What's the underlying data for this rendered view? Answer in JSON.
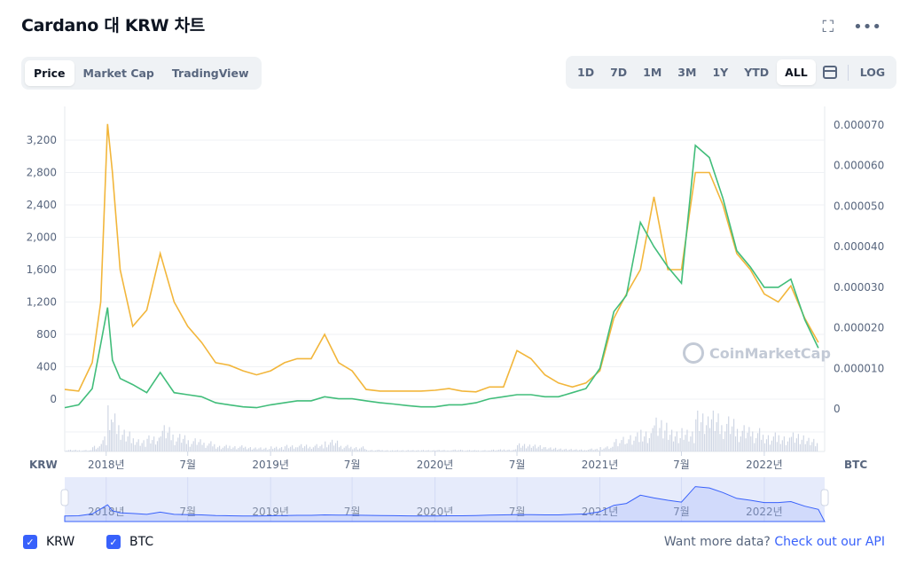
{
  "header": {
    "title": "Cardano 대 KRW 차트"
  },
  "tabs_left": [
    {
      "label": "Price",
      "active": true
    },
    {
      "label": "Market Cap",
      "active": false
    },
    {
      "label": "TradingView",
      "active": false
    }
  ],
  "tabs_right": [
    {
      "label": "1D",
      "active": false
    },
    {
      "label": "7D",
      "active": false
    },
    {
      "label": "1M",
      "active": false
    },
    {
      "label": "3M",
      "active": false
    },
    {
      "label": "1Y",
      "active": false
    },
    {
      "label": "YTD",
      "active": false
    },
    {
      "label": "ALL",
      "active": true
    }
  ],
  "log_label": "LOG",
  "watermark": "CoinMarketCap",
  "legend": {
    "krw": "KRW",
    "btc": "BTC"
  },
  "footer": {
    "prefix": "Want more data?",
    "link": "Check out our API"
  },
  "colors": {
    "krw": "#f2b63b",
    "btc": "#41bd7a",
    "volume": "#cfd6e4",
    "navigator": "#e6ebfb"
  },
  "chart_data": {
    "type": "line",
    "x_ticks": [
      "2018년",
      "7월",
      "2019년",
      "7월",
      "2020년",
      "7월",
      "2021년",
      "7월",
      "2022년"
    ],
    "x_unit_left": "KRW",
    "x_unit_right": "BTC",
    "y_left": {
      "ticks": [
        "0",
        "400",
        "800",
        "1,200",
        "1,600",
        "2,000",
        "2,400",
        "2,800",
        "3,200"
      ],
      "range": [
        0,
        3400
      ]
    },
    "y_right": {
      "ticks": [
        "0",
        "0.000010",
        "0.000020",
        "0.000030",
        "0.000040",
        "0.000050",
        "0.000060",
        "0.000070"
      ],
      "range": [
        0,
        7.2e-05
      ]
    },
    "grid": true,
    "series": [
      {
        "name": "KRW",
        "axis": "left",
        "x": [
          "2017-10",
          "2017-11",
          "2017-12",
          "2017-12-20",
          "2018-01-04",
          "2018-01-15",
          "2018-02",
          "2018-03",
          "2018-04",
          "2018-05",
          "2018-06",
          "2018-07",
          "2018-08",
          "2018-09",
          "2018-10",
          "2018-11",
          "2018-12",
          "2019-01",
          "2019-02",
          "2019-03",
          "2019-04",
          "2019-05",
          "2019-06",
          "2019-07",
          "2019-08",
          "2019-09",
          "2019-10",
          "2019-11",
          "2019-12",
          "2020-01",
          "2020-02",
          "2020-03",
          "2020-04",
          "2020-05",
          "2020-06",
          "2020-07",
          "2020-08",
          "2020-09",
          "2020-10",
          "2020-11",
          "2020-12",
          "2021-01",
          "2021-02",
          "2021-03",
          "2021-04",
          "2021-05",
          "2021-06",
          "2021-07",
          "2021-08",
          "2021-09",
          "2021-10",
          "2021-11",
          "2021-12",
          "2022-01",
          "2022-02",
          "2022-03",
          "2022-04",
          "2022-05"
        ],
        "values": [
          120,
          100,
          450,
          1200,
          3400,
          2800,
          1600,
          900,
          1100,
          1800,
          1200,
          900,
          700,
          450,
          420,
          350,
          300,
          350,
          450,
          500,
          500,
          800,
          450,
          350,
          120,
          100,
          100,
          100,
          100,
          110,
          130,
          100,
          90,
          150,
          150,
          600,
          500,
          300,
          200,
          150,
          200,
          350,
          1000,
          1300,
          1600,
          2500,
          1600,
          1600,
          2800,
          2800,
          2400,
          1800,
          1600,
          1300,
          1200,
          1400,
          1000,
          700
        ]
      },
      {
        "name": "BTC",
        "axis": "right",
        "x": [
          "2017-10",
          "2017-11",
          "2017-12",
          "2017-12-20",
          "2018-01-04",
          "2018-01-15",
          "2018-02",
          "2018-03",
          "2018-04",
          "2018-05",
          "2018-06",
          "2018-07",
          "2018-08",
          "2018-09",
          "2018-10",
          "2018-11",
          "2018-12",
          "2019-01",
          "2019-02",
          "2019-03",
          "2019-04",
          "2019-05",
          "2019-06",
          "2019-07",
          "2019-08",
          "2019-09",
          "2019-10",
          "2019-11",
          "2019-12",
          "2020-01",
          "2020-02",
          "2020-03",
          "2020-04",
          "2020-05",
          "2020-06",
          "2020-07",
          "2020-08",
          "2020-09",
          "2020-10",
          "2020-11",
          "2020-12",
          "2021-01",
          "2021-02",
          "2021-03",
          "2021-04",
          "2021-05",
          "2021-06",
          "2021-07",
          "2021-08",
          "2021-09",
          "2021-10",
          "2021-11",
          "2021-12",
          "2022-01",
          "2022-02",
          "2022-03",
          "2022-04",
          "2022-05"
        ],
        "values": [
          3e-07,
          1e-06,
          5e-06,
          1.6e-05,
          2.5e-05,
          1.2e-05,
          7.5e-06,
          6e-06,
          4e-06,
          9e-06,
          4e-06,
          3.5e-06,
          3e-06,
          1.5e-06,
          1e-06,
          5e-07,
          3e-07,
          1e-06,
          1.5e-06,
          2e-06,
          2e-06,
          3e-06,
          2.5e-06,
          2.5e-06,
          2e-06,
          1.5e-06,
          1.2e-06,
          8e-07,
          5e-07,
          5e-07,
          1e-06,
          1e-06,
          1.5e-06,
          2.5e-06,
          3e-06,
          3.5e-06,
          3.5e-06,
          3e-06,
          3e-06,
          4e-06,
          5e-06,
          1e-05,
          2.4e-05,
          2.8e-05,
          4.6e-05,
          4e-05,
          3.5e-05,
          3.1e-05,
          6.5e-05,
          6.2e-05,
          5.2e-05,
          3.9e-05,
          3.5e-05,
          3e-05,
          3e-05,
          3.2e-05,
          2.2e-05,
          1.5e-05
        ]
      }
    ]
  }
}
